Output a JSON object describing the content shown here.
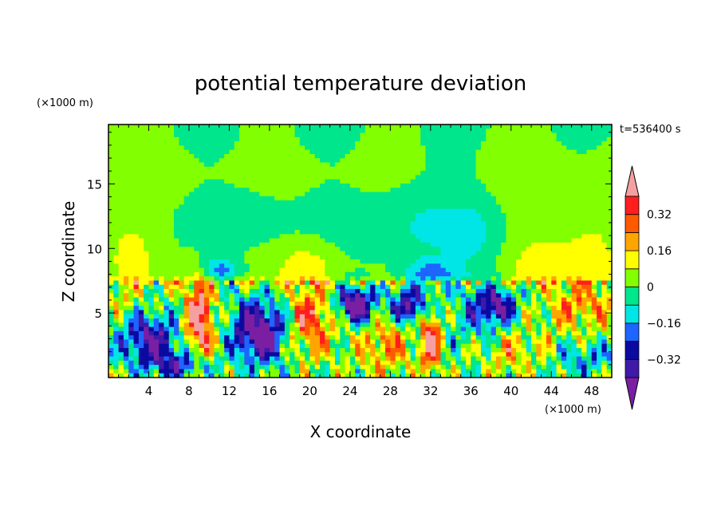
{
  "chart_data": {
    "type": "heatmap",
    "title": "potential temperature deviation",
    "time_label": "t=536400 s",
    "xlabel": "X coordinate",
    "ylabel": "Z coordinate",
    "x_unit": "(×1000 m)",
    "y_unit": "(×1000 m)",
    "xlim": [
      0,
      50
    ],
    "ylim": [
      0,
      19.6
    ],
    "x_ticks": [
      4,
      8,
      12,
      16,
      20,
      24,
      28,
      32,
      36,
      40,
      44,
      48
    ],
    "y_ticks": [
      5,
      10,
      15
    ],
    "colorbar": {
      "levels": [
        -0.4,
        -0.32,
        -0.24,
        -0.16,
        -0.08,
        0,
        0.08,
        0.16,
        0.24,
        0.32,
        0.4
      ],
      "labels": [
        "0.32",
        "0.16",
        "0",
        "−0.16",
        "−0.32"
      ],
      "label_values": [
        0.32,
        0.16,
        0,
        -0.16,
        -0.32
      ],
      "colors": [
        "#7b1fa2",
        "#3f19a8",
        "#0a0aa0",
        "#1e64ff",
        "#00e6e6",
        "#00e68c",
        "#82ff00",
        "#ffff00",
        "#ffa500",
        "#ff5a00",
        "#ff1e1e",
        "#f5a0a0"
      ]
    }
  }
}
